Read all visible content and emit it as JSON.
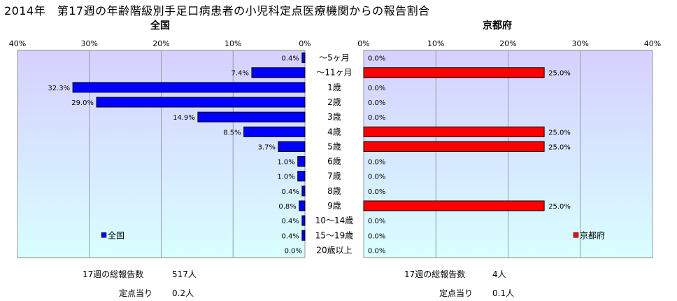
{
  "title": "2014年　第17週の年齢階級別手足口病患者の小児科定点医療機関からの報告割合",
  "colors": {
    "national": "#0000FF",
    "kyoto": "#FF0000",
    "plot_bg_top": "#D6D0FF",
    "plot_bg_bottom": "#D8FFFF"
  },
  "chart_data": [
    {
      "type": "bar",
      "title": "全国",
      "orientation": "horizontal",
      "x_direction": "reversed",
      "categories": [
        "〜5ヶ月",
        "〜11ヶ月",
        "1歳",
        "2歳",
        "3歳",
        "4歳",
        "5歳",
        "6歳",
        "7歳",
        "8歳",
        "9歳",
        "10〜14歳",
        "15〜19歳",
        "20歳以上"
      ],
      "series": [
        {
          "name": "全国",
          "values": [
            0.4,
            7.4,
            32.3,
            29.0,
            14.9,
            8.5,
            3.7,
            1.0,
            1.0,
            0.4,
            0.8,
            0.4,
            0.4,
            0.0
          ]
        }
      ],
      "data_labels": [
        "0.4%",
        "7.4%",
        "32.3%",
        "29.0%",
        "14.9%",
        "8.5%",
        "3.7%",
        "1.0%",
        "1.0%",
        "0.4%",
        "0.8%",
        "0.4%",
        "0.4%",
        "0.0%"
      ],
      "xlim": [
        0,
        40
      ],
      "ticks": [
        "40%",
        "30%",
        "20%",
        "10%",
        "0%"
      ],
      "grid": true,
      "legend": "bottom-left"
    },
    {
      "type": "bar",
      "title": "京都府",
      "orientation": "horizontal",
      "categories": [
        "〜5ヶ月",
        "〜11ヶ月",
        "1歳",
        "2歳",
        "3歳",
        "4歳",
        "5歳",
        "6歳",
        "7歳",
        "8歳",
        "9歳",
        "10〜14歳",
        "15〜19歳",
        "20歳以上"
      ],
      "series": [
        {
          "name": "京都府",
          "values": [
            0.0,
            25.0,
            0.0,
            0.0,
            0.0,
            25.0,
            25.0,
            0.0,
            0.0,
            0.0,
            25.0,
            0.0,
            0.0,
            0.0
          ]
        }
      ],
      "data_labels": [
        "0.0%",
        "25.0%",
        "0.0%",
        "0.0%",
        "0.0%",
        "25.0%",
        "25.0%",
        "0.0%",
        "0.0%",
        "0.0%",
        "25.0%",
        "0.0%",
        "0.0%",
        "0.0%"
      ],
      "xlim": [
        0,
        40
      ],
      "ticks": [
        "0%",
        "10%",
        "20%",
        "30%",
        "40%"
      ],
      "grid": true,
      "legend": "bottom-right"
    }
  ],
  "footer": {
    "national_reports_label": "17週の総報告数",
    "national_reports_value": "517人",
    "national_per_site_label": "定点当り",
    "national_per_site_value": "0.2人",
    "kyoto_reports_label": "17週の総報告数",
    "kyoto_reports_value": "4人",
    "kyoto_per_site_label": "定点当り",
    "kyoto_per_site_value": "0.1人"
  }
}
